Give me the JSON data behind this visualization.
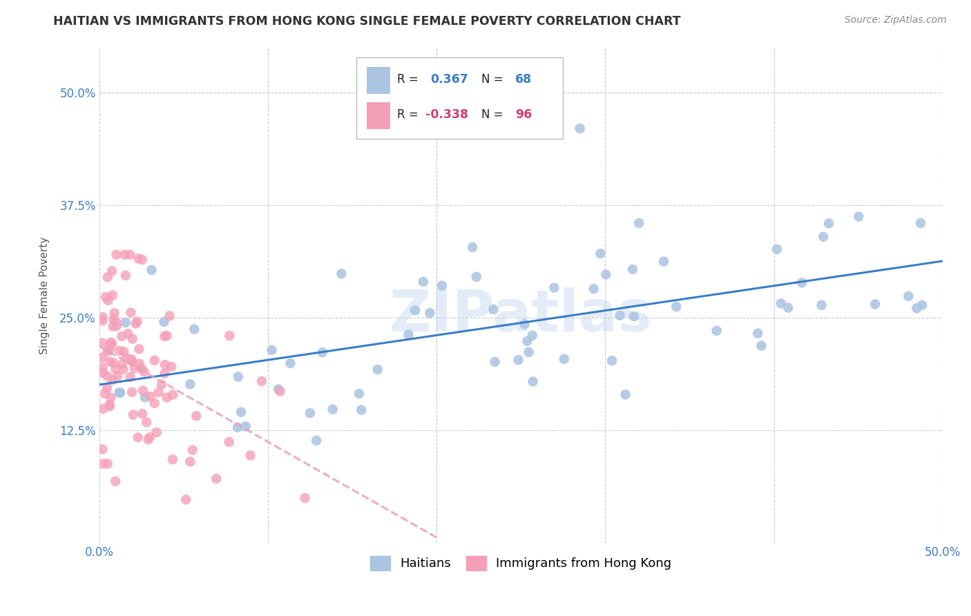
{
  "title": "HAITIAN VS IMMIGRANTS FROM HONG KONG SINGLE FEMALE POVERTY CORRELATION CHART",
  "source": "Source: ZipAtlas.com",
  "ylabel": "Single Female Poverty",
  "xlim": [
    0.0,
    0.5
  ],
  "ylim": [
    0.0,
    0.55
  ],
  "ytick_positions": [
    0.125,
    0.25,
    0.375,
    0.5
  ],
  "ytick_labels": [
    "12.5%",
    "25.0%",
    "37.5%",
    "50.0%"
  ],
  "blue_R": 0.367,
  "blue_N": 68,
  "pink_R": -0.338,
  "pink_N": 96,
  "blue_color": "#aac4e2",
  "pink_color": "#f5a0b8",
  "blue_line_color": "#3a7dc8",
  "pink_line_color": "#e8a0b8",
  "legend_blue_label": "Haitians",
  "legend_pink_label": "Immigrants from Hong Kong",
  "background_color": "#ffffff",
  "grid_color": "#c8c8c8",
  "watermark": "ZIPatlas",
  "title_color": "#333333",
  "source_color": "#888888",
  "tick_color": "#3a7dc8"
}
